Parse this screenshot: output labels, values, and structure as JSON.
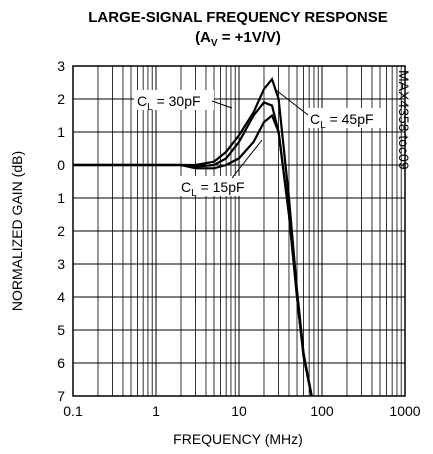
{
  "chart_data": {
    "type": "line",
    "title": "LARGE-SIGNAL FREQUENCY RESPONSE",
    "subtitle": {
      "lead": "(A",
      "sub": "V",
      "rest": " = +1V/V)"
    },
    "xlabel": "FREQUENCY (MHz)",
    "ylabel": "NORMALIZED GAIN (dB)",
    "side_note": "MAX4358 toc09",
    "log_x": true,
    "grid": true,
    "minor_grid": true,
    "xlim": [
      0.1,
      1000
    ],
    "xticks": [
      0.1,
      1,
      10,
      100,
      1000
    ],
    "ylim": [
      -7,
      3
    ],
    "yticks": [
      {
        "value": -7,
        "label": "7"
      },
      {
        "value": -6,
        "label": "6"
      },
      {
        "value": -5,
        "label": "5"
      },
      {
        "value": -4,
        "label": "4"
      },
      {
        "value": -3,
        "label": "3"
      },
      {
        "value": -2,
        "label": "2"
      },
      {
        "value": -1,
        "label": "1"
      },
      0,
      1,
      2,
      3
    ],
    "x": [
      0.1,
      0.5,
      1,
      2,
      3,
      5,
      7,
      10,
      15,
      20,
      25,
      30,
      40,
      50,
      60,
      75
    ],
    "series": [
      {
        "name": "15pF",
        "color": "#000000",
        "values": [
          0,
          0,
          0,
          0,
          -0.1,
          -0.1,
          0,
          0.2,
          0.7,
          1.3,
          1.5,
          1.0,
          -1.5,
          -4,
          -5.8,
          -7
        ]
      },
      {
        "name": "30pF",
        "color": "#000000",
        "values": [
          0,
          0,
          0,
          0,
          -0.05,
          0,
          0.2,
          0.7,
          1.5,
          1.9,
          1.8,
          1.0,
          -1.5,
          -4,
          -5.8,
          -7
        ]
      },
      {
        "name": "45pF",
        "color": "#000000",
        "values": [
          0,
          0,
          0,
          0,
          0,
          0.1,
          0.4,
          0.9,
          1.6,
          2.3,
          2.6,
          2.0,
          -1.0,
          -3.8,
          -5.7,
          -7
        ]
      }
    ],
    "annotations": [
      {
        "lead": "C",
        "sub": "L",
        "rest": " = 30pF"
      },
      {
        "lead": "C",
        "sub": "L",
        "rest": " = 45pF"
      },
      {
        "lead": "C",
        "sub": "L",
        "rest": " = 15pF"
      }
    ]
  }
}
